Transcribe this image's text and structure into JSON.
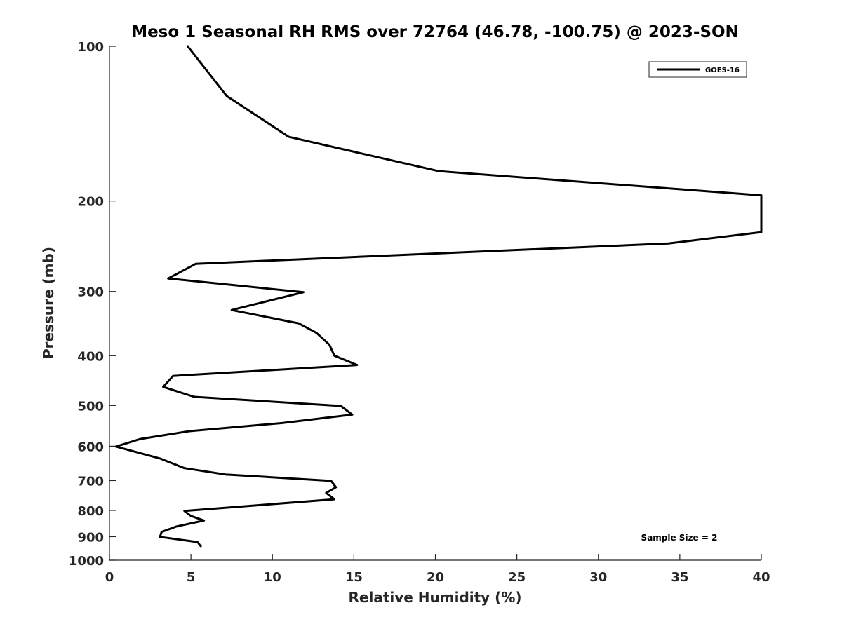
{
  "chart_data": {
    "type": "line",
    "title": "Meso 1 Seasonal RH RMS over 72764 (46.78, -100.75) @ 2023-SON",
    "xlabel": "Relative Humidity (%)",
    "ylabel": "Pressure (mb)",
    "xlim": [
      0,
      40
    ],
    "ylim": [
      100,
      1000
    ],
    "y_scale": "log",
    "y_reversed": true,
    "grid": false,
    "legend_position": "top-right",
    "x_ticks": [
      0,
      5,
      10,
      15,
      20,
      25,
      30,
      35,
      40
    ],
    "y_ticks": [
      100,
      200,
      300,
      400,
      500,
      600,
      700,
      800,
      900,
      1000
    ],
    "annotation": "Sample Size = 2",
    "series": [
      {
        "name": "GOES-16",
        "color": "#000000",
        "points": [
          [
            4.8,
            100
          ],
          [
            7.2,
            125
          ],
          [
            11.0,
            150
          ],
          [
            20.2,
            175
          ],
          [
            40.0,
            195
          ],
          [
            40.0,
            230
          ],
          [
            34.3,
            242
          ],
          [
            5.3,
            265
          ],
          [
            3.6,
            283
          ],
          [
            11.9,
            301
          ],
          [
            7.5,
            326
          ],
          [
            11.6,
            346
          ],
          [
            12.7,
            361
          ],
          [
            13.5,
            381
          ],
          [
            13.8,
            400
          ],
          [
            15.2,
            417
          ],
          [
            3.9,
            438
          ],
          [
            3.3,
            460
          ],
          [
            5.2,
            481
          ],
          [
            14.2,
            501
          ],
          [
            14.9,
            521
          ],
          [
            10.6,
            541
          ],
          [
            4.9,
            561
          ],
          [
            1.9,
            581
          ],
          [
            0.4,
            601
          ],
          [
            3.1,
            634
          ],
          [
            4.6,
            662
          ],
          [
            7.1,
            681
          ],
          [
            13.6,
            701
          ],
          [
            13.9,
            721
          ],
          [
            13.3,
            740
          ],
          [
            13.8,
            761
          ],
          [
            4.6,
            802
          ],
          [
            5.0,
            820
          ],
          [
            5.8,
            837
          ],
          [
            4.1,
            860
          ],
          [
            3.2,
            881
          ],
          [
            3.1,
            901
          ],
          [
            5.4,
            922
          ],
          [
            5.6,
            939
          ]
        ]
      }
    ]
  }
}
